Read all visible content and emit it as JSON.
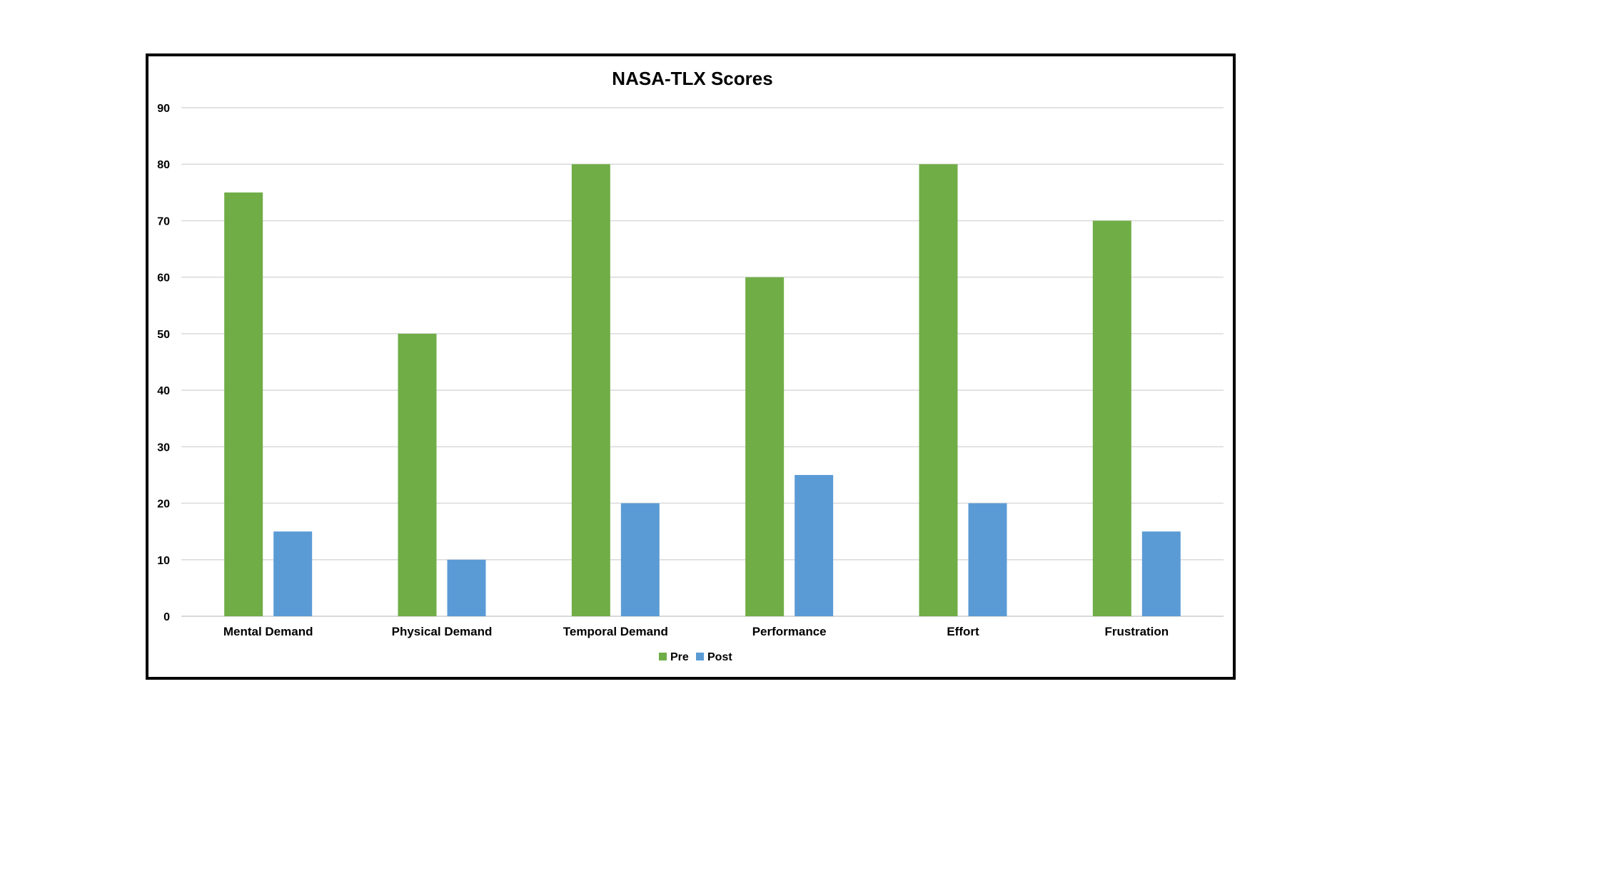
{
  "chart_data": {
    "type": "bar",
    "title": "NASA-TLX Scores",
    "xlabel": "",
    "ylabel": "",
    "categories": [
      "Mental Demand",
      "Physical Demand",
      "Temporal Demand",
      "Performance",
      "Effort",
      "Frustration"
    ],
    "series": [
      {
        "name": "Pre",
        "color": "#70ad47",
        "values": [
          75,
          50,
          80,
          60,
          80,
          70
        ]
      },
      {
        "name": "Post",
        "color": "#5b9bd5",
        "values": [
          15,
          10,
          20,
          25,
          20,
          15
        ]
      }
    ],
    "ylim": [
      0,
      90
    ],
    "yticks": [
      "0",
      "10",
      "20",
      "30",
      "40",
      "50",
      "60",
      "70",
      "80",
      "90"
    ],
    "grid": true,
    "gridline_color": "#d9d9d9",
    "legend_position": "bottom"
  }
}
